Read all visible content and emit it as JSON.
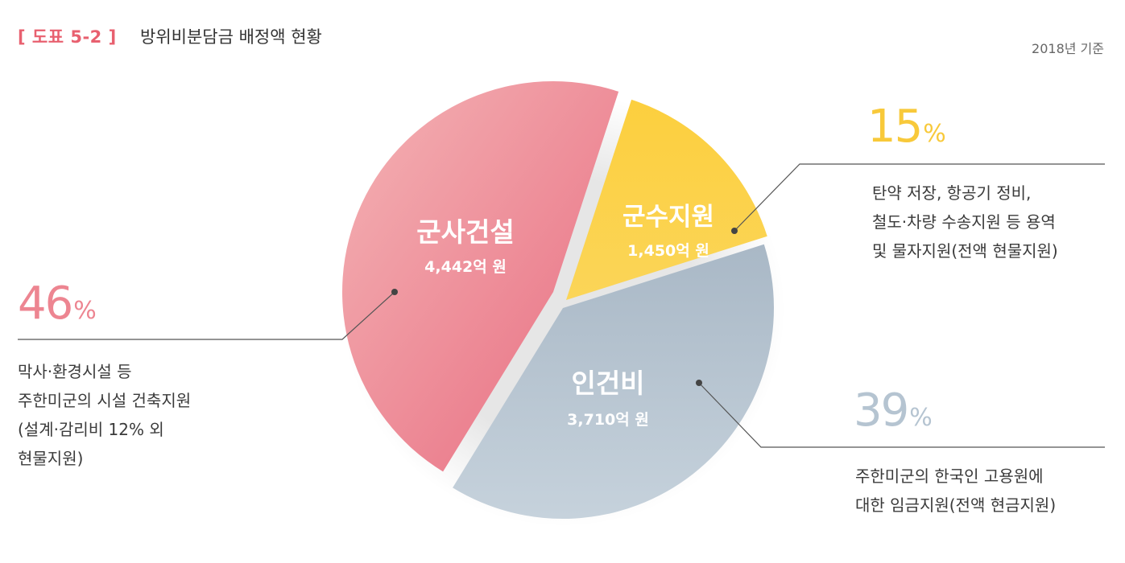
{
  "header": {
    "tag": "[ 도표 5-2 ]",
    "title": "방위비분담금 배정액 현황",
    "basis": "2018년 기준"
  },
  "colors": {
    "accent": "#e8606f",
    "construction": "#ed8591",
    "logistics": "#fbd04c",
    "labor": "#b5c4d1"
  },
  "chart_data": {
    "type": "pie",
    "title": "방위비분담금 배정액 현황",
    "slices": [
      {
        "label": "군사건설",
        "amount": "4,442억 원",
        "value": 4442,
        "percent": 46,
        "color": "#ed8591"
      },
      {
        "label": "군수지원",
        "amount": "1,450억 원",
        "value": 1450,
        "percent": 15,
        "color": "#fbd04c"
      },
      {
        "label": "인건비",
        "amount": "3,710억 원",
        "value": 3710,
        "percent": 39,
        "color": "#b5c4d1"
      }
    ]
  },
  "callouts": {
    "construction": {
      "percent": "46",
      "unit": "%",
      "lines": [
        "막사·환경시설 등",
        "주한미군의 시설 건축지원",
        "(설계·감리비 12% 외",
        "현물지원)"
      ]
    },
    "logistics": {
      "percent": "15",
      "unit": "%",
      "lines": [
        "탄약 저장, 항공기 정비,",
        "철도·차량 수송지원 등 용역",
        "및 물자지원(전액 현물지원)"
      ]
    },
    "labor": {
      "percent": "39",
      "unit": "%",
      "lines": [
        "주한미군의 한국인 고용원에",
        "대한 임금지원(전액 현금지원)"
      ]
    }
  }
}
